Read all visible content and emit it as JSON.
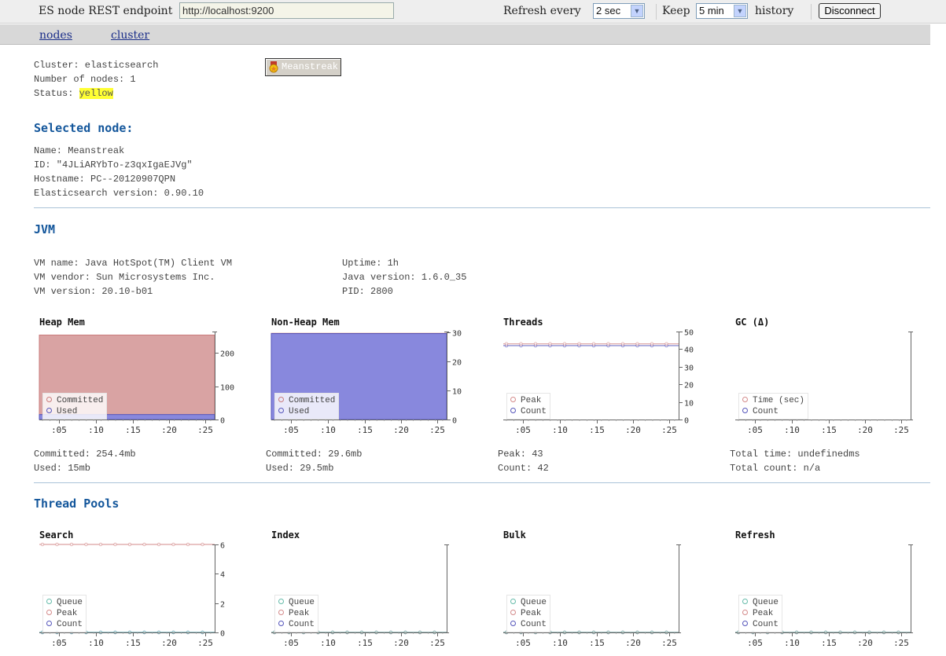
{
  "toolbar": {
    "endpoint_label": "ES node REST endpoint",
    "endpoint_value": "http://localhost:9200",
    "refresh_label": "Refresh every",
    "refresh_value": "2 sec",
    "keep_label": "Keep",
    "keep_value": "5 min",
    "history_label": "history",
    "disconnect_label": "Disconnect"
  },
  "nav": {
    "nodes": "nodes",
    "cluster": "cluster"
  },
  "cluster": {
    "name_line": "Cluster: elasticsearch",
    "nodes_line": "Number of nodes: 1",
    "status_label": "Status: ",
    "status_value": "yellow",
    "status_color": "#ffff33",
    "node_button": "Meanstreak"
  },
  "selected_node": {
    "heading": "Selected node:",
    "name": "Name: Meanstreak",
    "id": "ID: \"4JLiARYbTo-z3qxIgaEJVg\"",
    "hostname": "Hostname: PC--20120907QPN",
    "version": "Elasticsearch version: 0.90.10"
  },
  "jvm": {
    "heading": "JVM",
    "vm_name": "VM name: Java HotSpot(TM) Client VM",
    "vm_vendor": "VM vendor: Sun Microsystems Inc.",
    "vm_version": "VM version: 20.10-b01",
    "uptime": "Uptime: 1h",
    "java_version": "Java version: 1.6.0_35",
    "pid": "PID: 2800"
  },
  "thread_pools": {
    "heading": "Thread Pools"
  },
  "chart_data": [
    {
      "id": "heap",
      "type": "area",
      "title": "Heap Mem",
      "x_ticks": [
        ":05",
        ":10",
        ":15",
        ":20",
        ":25"
      ],
      "y_ticks": [
        "0",
        "100",
        "200"
      ],
      "ylim": [
        0,
        265
      ],
      "y_tick_values": [
        0,
        100,
        200
      ],
      "series": [
        {
          "name": "Committed",
          "color": "#d9a3a3",
          "stroke": "#c97b7b",
          "value": 254.4
        },
        {
          "name": "Used",
          "color": "#8888dd",
          "stroke": "#5555bb",
          "value": 15
        }
      ],
      "stats": [
        "Committed: 254.4mb",
        "Used: 15mb"
      ]
    },
    {
      "id": "nonheap",
      "type": "area",
      "title": "Non-Heap Mem",
      "x_ticks": [
        ":05",
        ":10",
        ":15",
        ":20",
        ":25"
      ],
      "y_ticks": [
        "0",
        "10",
        "20",
        "30"
      ],
      "ylim": [
        0,
        30.2
      ],
      "y_tick_values": [
        0,
        10,
        20,
        30
      ],
      "series": [
        {
          "name": "Committed",
          "color": "#d9a3a3",
          "stroke": "#c97b7b",
          "value": 29.6
        },
        {
          "name": "Used",
          "color": "#8888dd",
          "stroke": "#5555bb",
          "value": 29.5
        }
      ],
      "stats": [
        "Committed: 29.6mb",
        "Used: 29.5mb"
      ]
    },
    {
      "id": "threads",
      "type": "line",
      "title": "Threads",
      "x_ticks": [
        ":05",
        ":10",
        ":15",
        ":20",
        ":25"
      ],
      "y_ticks": [
        "0",
        "10",
        "20",
        "30",
        "40",
        "50"
      ],
      "ylim": [
        0,
        50
      ],
      "y_tick_values": [
        0,
        10,
        20,
        30,
        40,
        50
      ],
      "series": [
        {
          "name": "Peak",
          "color": "#d48a8a",
          "value": 43
        },
        {
          "name": "Count",
          "color": "#5555bb",
          "value": 42
        }
      ],
      "stats": [
        "Peak: 43",
        "Count: 42"
      ]
    },
    {
      "id": "gc",
      "type": "line",
      "title": "GC (Δ)",
      "x_ticks": [
        ":05",
        ":10",
        ":15",
        ":20",
        ":25"
      ],
      "y_ticks": [],
      "ylim": [
        0,
        1
      ],
      "y_tick_values": [],
      "series": [
        {
          "name": "Time (sec)",
          "color": "#d48a8a",
          "value": null
        },
        {
          "name": "Count",
          "color": "#5555bb",
          "value": null
        }
      ],
      "stats": [
        "Total time: undefinedms",
        "Total count: n/a"
      ]
    },
    {
      "id": "search",
      "type": "line",
      "title": "Search",
      "x_ticks": [
        ":05",
        ":10",
        ":15",
        ":20",
        ":25"
      ],
      "y_ticks": [
        "0",
        "2",
        "4",
        "6"
      ],
      "ylim": [
        0,
        6
      ],
      "y_tick_values": [
        0,
        2,
        4,
        6
      ],
      "series": [
        {
          "name": "Queue",
          "color": "#66bbaa",
          "value": 0
        },
        {
          "name": "Peak",
          "color": "#d48a8a",
          "value": 6
        },
        {
          "name": "Count",
          "color": "#5555bb",
          "value": 0
        }
      ],
      "stats": []
    },
    {
      "id": "index",
      "type": "line",
      "title": "Index",
      "x_ticks": [
        ":05",
        ":10",
        ":15",
        ":20",
        ":25"
      ],
      "y_ticks": [],
      "ylim": [
        0,
        1
      ],
      "y_tick_values": [],
      "series": [
        {
          "name": "Queue",
          "color": "#66bbaa",
          "value": 0
        },
        {
          "name": "Peak",
          "color": "#d48a8a",
          "value": 0
        },
        {
          "name": "Count",
          "color": "#5555bb",
          "value": 0
        }
      ],
      "stats": []
    },
    {
      "id": "bulk",
      "type": "line",
      "title": "Bulk",
      "x_ticks": [
        ":05",
        ":10",
        ":15",
        ":20",
        ":25"
      ],
      "y_ticks": [],
      "ylim": [
        0,
        1
      ],
      "y_tick_values": [],
      "series": [
        {
          "name": "Queue",
          "color": "#66bbaa",
          "value": 0
        },
        {
          "name": "Peak",
          "color": "#d48a8a",
          "value": 0
        },
        {
          "name": "Count",
          "color": "#5555bb",
          "value": 0
        }
      ],
      "stats": []
    },
    {
      "id": "refresh",
      "type": "line",
      "title": "Refresh",
      "x_ticks": [
        ":05",
        ":10",
        ":15",
        ":20",
        ":25"
      ],
      "y_ticks": [],
      "ylim": [
        0,
        1
      ],
      "y_tick_values": [],
      "series": [
        {
          "name": "Queue",
          "color": "#66bbaa",
          "value": 0
        },
        {
          "name": "Peak",
          "color": "#d48a8a",
          "value": 0
        },
        {
          "name": "Count",
          "color": "#5555bb",
          "value": 0
        }
      ],
      "stats": []
    }
  ]
}
